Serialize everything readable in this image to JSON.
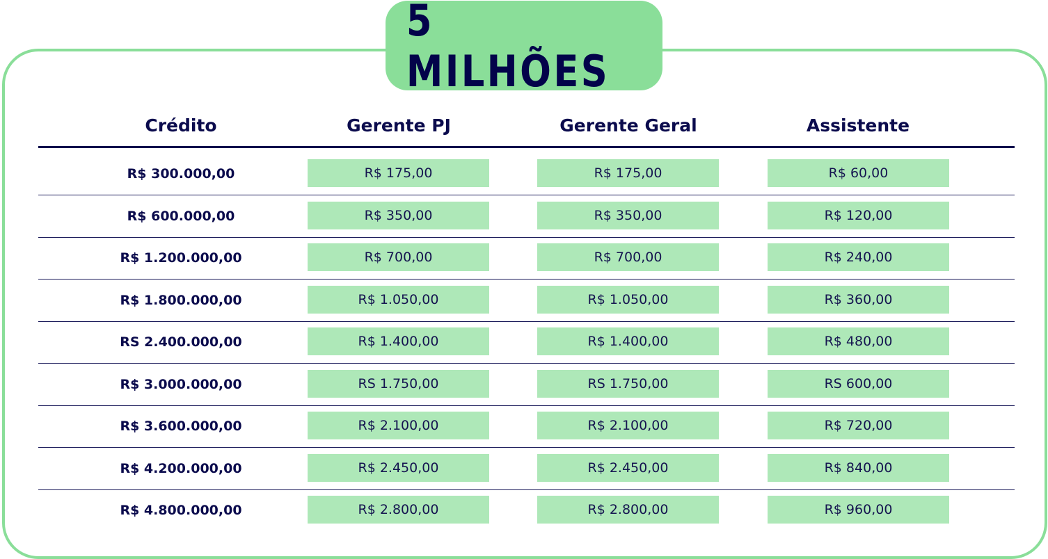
{
  "title": "5 MILHÕES",
  "colors": {
    "accent_green": "#8ade99",
    "cell_green": "#aee8b8",
    "navy": "#0b0b4d"
  },
  "headers": [
    "Crédito",
    "Gerente PJ",
    "Gerente Geral",
    "Assistente"
  ],
  "rows": [
    {
      "credito": "R$ 300.000,00",
      "gerente_pj": "R$ 175,00",
      "gerente_geral": "R$ 175,00",
      "assistente": "R$ 60,00"
    },
    {
      "credito": "R$ 600.000,00",
      "gerente_pj": "R$ 350,00",
      "gerente_geral": "R$ 350,00",
      "assistente": "R$ 120,00"
    },
    {
      "credito": "R$ 1.200.000,00",
      "gerente_pj": "R$ 700,00",
      "gerente_geral": "R$ 700,00",
      "assistente": "R$ 240,00"
    },
    {
      "credito": "R$ 1.800.000,00",
      "gerente_pj": "R$ 1.050,00",
      "gerente_geral": "R$ 1.050,00",
      "assistente": "R$ 360,00"
    },
    {
      "credito": "RS 2.400.000,00",
      "gerente_pj": "R$ 1.400,00",
      "gerente_geral": "R$ 1.400,00",
      "assistente": "R$ 480,00"
    },
    {
      "credito": "R$ 3.000.000,00",
      "gerente_pj": "RS 1.750,00",
      "gerente_geral": "RS 1.750,00",
      "assistente": "RS 600,00"
    },
    {
      "credito": "R$ 3.600.000,00",
      "gerente_pj": "R$ 2.100,00",
      "gerente_geral": "R$ 2.100,00",
      "assistente": "R$ 720,00"
    },
    {
      "credito": "R$ 4.200.000,00",
      "gerente_pj": "R$ 2.450,00",
      "gerente_geral": "R$ 2.450,00",
      "assistente": "R$ 840,00"
    },
    {
      "credito": "R$ 4.800.000,00",
      "gerente_pj": "R$ 2.800,00",
      "gerente_geral": "R$ 2.800,00",
      "assistente": "R$ 960,00"
    }
  ]
}
